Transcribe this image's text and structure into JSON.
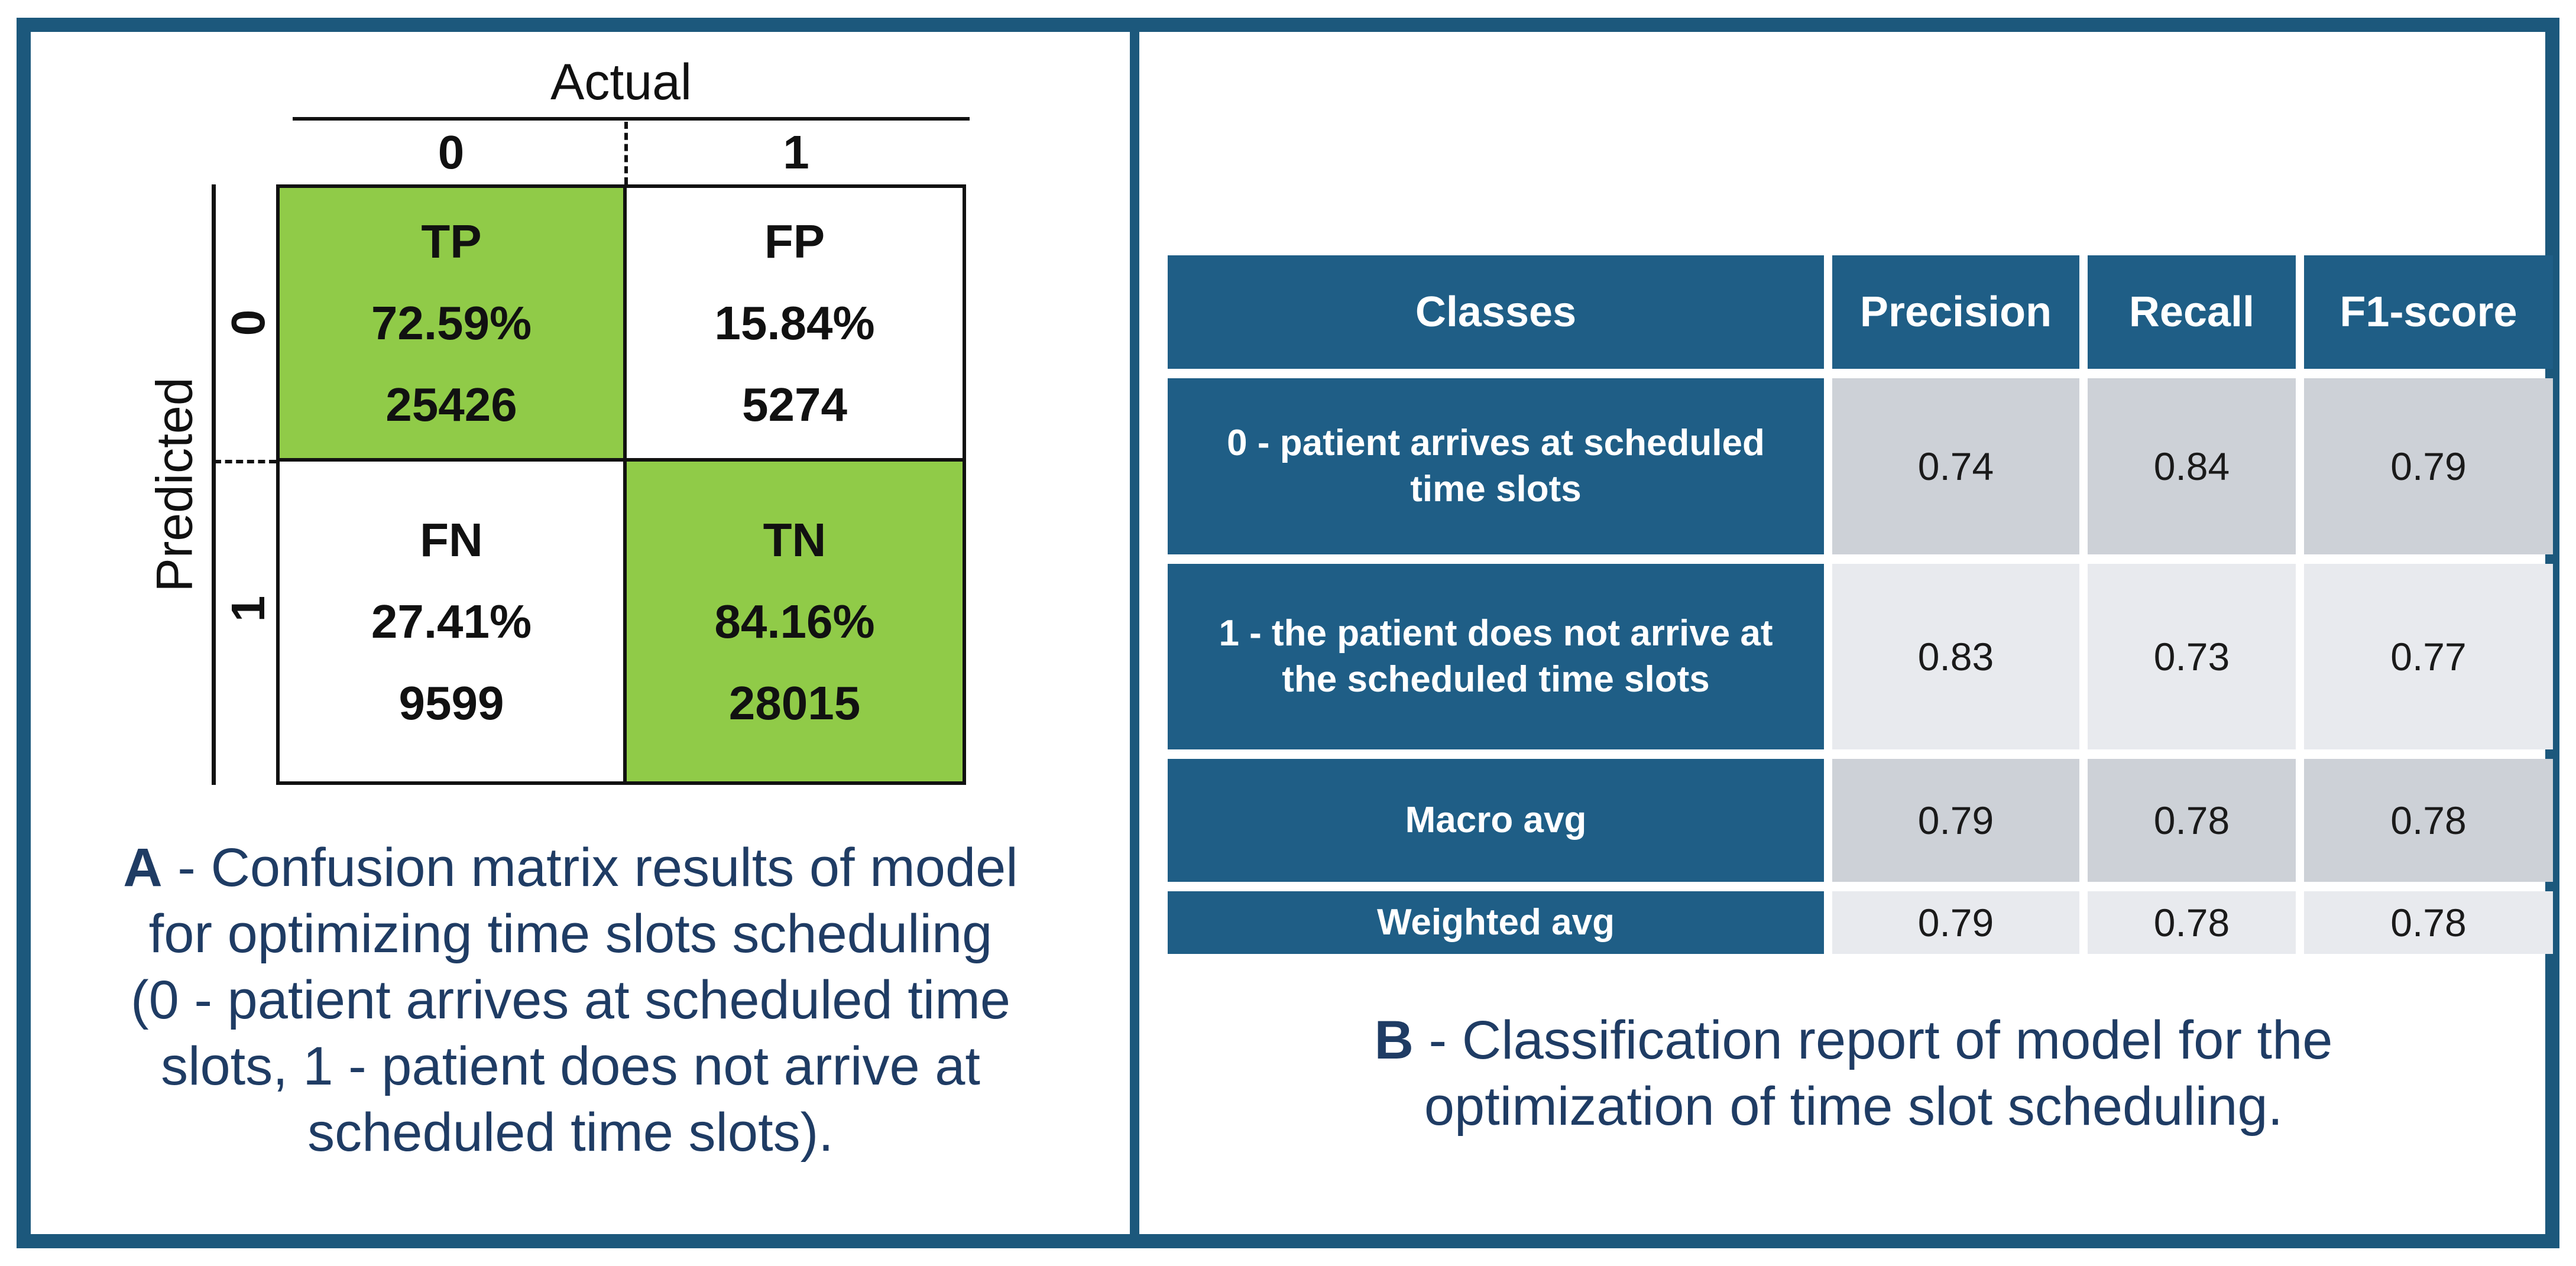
{
  "colors": {
    "frame_teal": "#1c587c",
    "table_teal": "#1f5e86",
    "green": "#90cb48",
    "gray_dark": "#cdd1d7",
    "gray_light": "#e8eaee",
    "navy": "#1f3c64"
  },
  "panel_a": {
    "axis_top_label": "Actual",
    "axis_left_label": "Predicted",
    "col_labels": [
      "0",
      "1"
    ],
    "row_labels": [
      "0",
      "1"
    ],
    "matrix": {
      "cells": [
        {
          "label": "TP",
          "pct": "72.59%",
          "count": "25426",
          "highlighted": true
        },
        {
          "label": "FP",
          "pct": "15.84%",
          "count": "5274",
          "highlighted": false
        },
        {
          "label": "FN",
          "pct": "27.41%",
          "count": "9599",
          "highlighted": false
        },
        {
          "label": "TN",
          "pct": "84.16%",
          "count": "28015",
          "highlighted": true
        }
      ]
    },
    "caption": {
      "prefix": "A",
      "lines": [
        " - Confusion matrix results of model",
        "for optimizing time slots scheduling",
        "(0 - patient arrives at scheduled time",
        "slots, 1 - patient does not arrive at",
        "scheduled time slots)."
      ]
    }
  },
  "panel_b": {
    "table": {
      "headers": [
        "Classes",
        "Precision",
        "Recall",
        "F1-score"
      ],
      "rows": [
        {
          "label": "0 - patient arrives at scheduled time slots",
          "precision": "0.74",
          "recall": "0.84",
          "f1": "0.79"
        },
        {
          "label": "1 - the patient does not arrive at the scheduled time slots",
          "precision": "0.83",
          "recall": "0.73",
          "f1": "0.77"
        },
        {
          "label": "Macro avg",
          "precision": "0.79",
          "recall": "0.78",
          "f1": "0.78"
        },
        {
          "label": "Weighted avg",
          "precision": "0.79",
          "recall": "0.78",
          "f1": "0.78"
        }
      ]
    },
    "caption": {
      "prefix": "B",
      "lines": [
        " - Classification report of model for the",
        "optimization of time slot scheduling."
      ]
    }
  },
  "chart_data": [
    {
      "type": "heatmap",
      "title": "Confusion matrix of model for optimizing time slots scheduling",
      "xlabel": "Actual",
      "ylabel": "Predicted",
      "x_labels": [
        "0",
        "1"
      ],
      "y_labels": [
        "0",
        "1"
      ],
      "cells": [
        {
          "row": "0",
          "col": "0",
          "name": "TP",
          "percent": 72.59,
          "count": 25426,
          "highlighted": true
        },
        {
          "row": "0",
          "col": "1",
          "name": "FP",
          "percent": 15.84,
          "count": 5274,
          "highlighted": false
        },
        {
          "row": "1",
          "col": "0",
          "name": "FN",
          "percent": 27.41,
          "count": 9599,
          "highlighted": false
        },
        {
          "row": "1",
          "col": "1",
          "name": "TN",
          "percent": 84.16,
          "count": 28015,
          "highlighted": true
        }
      ]
    },
    {
      "type": "table",
      "title": "Classification report of model for the optimization of time slot scheduling",
      "columns": [
        "Classes",
        "Precision",
        "Recall",
        "F1-score"
      ],
      "rows": [
        [
          "0 - patient arrives at scheduled time slots",
          0.74,
          0.84,
          0.79
        ],
        [
          "1 - the patient does not arrive at the scheduled time slots",
          0.83,
          0.73,
          0.77
        ],
        [
          "Macro avg",
          0.79,
          0.78,
          0.78
        ],
        [
          "Weighted avg",
          0.79,
          0.78,
          0.78
        ]
      ]
    }
  ]
}
